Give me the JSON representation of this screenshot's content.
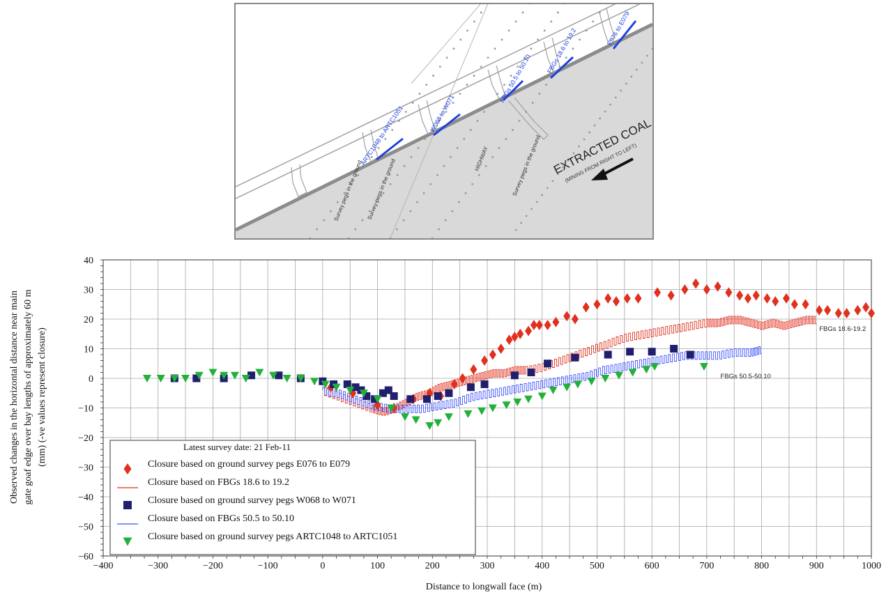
{
  "map_inset": {
    "main_label": "EXTRACTED COAL",
    "sub_label": "(MINING FROM RIGHT TO LEFT)",
    "highway_label": "HIGHWAY",
    "peg_label": "Survey pegs in the ground",
    "sections": [
      {
        "label": "ARTC1048 to ARTC1051"
      },
      {
        "label": "W068 to W071"
      },
      {
        "label": "FBGs 50.5 to 50.10"
      },
      {
        "label": "FBGs 18.6 to 19.2"
      },
      {
        "label": "E076 to E079"
      }
    ],
    "colors": {
      "fill": "#d9d9d9",
      "road": "#8c8c8c",
      "section": "#1f3fe0",
      "peg": "#999999"
    }
  },
  "chart_data": {
    "type": "scatter",
    "title": "",
    "xlabel": "Distance to longwall face (m)",
    "ylabel_lines": [
      "Observed changes in the horizontal distance near main",
      "gate goaf edge over bay lengths of approximately 60 m",
      "(mm) (-ve values represent closure)"
    ],
    "xlim": [
      -400,
      1000
    ],
    "ylim": [
      -60,
      40
    ],
    "x_ticks": [
      -400,
      -300,
      -200,
      -100,
      0,
      100,
      200,
      300,
      400,
      500,
      600,
      700,
      800,
      900,
      1000
    ],
    "x_tick_labels": [
      "−400",
      "−300",
      "−200",
      "−100",
      "0",
      "100",
      "200",
      "300",
      "400",
      "500",
      "600",
      "700",
      "800",
      "900",
      "1000"
    ],
    "y_ticks": [
      -60,
      -50,
      -40,
      -30,
      -20,
      -10,
      0,
      10,
      20,
      30,
      40
    ],
    "y_tick_labels": [
      "−60",
      "−50",
      "−40",
      "−30",
      "−20",
      "−10",
      "0",
      "10",
      "20",
      "30",
      "40"
    ],
    "grid": true,
    "legend": {
      "position": "bottom-left",
      "title": "Latest survey date: 21 Feb-11"
    },
    "series": [
      {
        "name": "Closure based on ground survey pegs E076 to E079",
        "kind": "marker",
        "marker": "diamond",
        "color": "#e0301e",
        "x": [
          15,
          55,
          100,
          130,
          165,
          195,
          215,
          240,
          255,
          275,
          295,
          310,
          325,
          340,
          350,
          360,
          375,
          385,
          395,
          410,
          425,
          445,
          460,
          480,
          500,
          520,
          535,
          555,
          575,
          610,
          635,
          660,
          680,
          700,
          720,
          740,
          760,
          775,
          790,
          810,
          825,
          845,
          860,
          880,
          905,
          920,
          940,
          955,
          975,
          990,
          1000
        ],
        "y": [
          -3,
          -5,
          -9,
          -10,
          -7,
          -5,
          -6,
          -2,
          0,
          3,
          6,
          8,
          10,
          13,
          14,
          15,
          16,
          18,
          18,
          18,
          19,
          21,
          20,
          24,
          25,
          27,
          26,
          27,
          27,
          29,
          28,
          30,
          32,
          30,
          31,
          29,
          28,
          27,
          28,
          27,
          26,
          27,
          25,
          25,
          23,
          23,
          22,
          22,
          23,
          24,
          22
        ]
      },
      {
        "name": "Closure based on FBGs 18.6 to 19.2",
        "kind": "line",
        "color": "#e0301e",
        "x": [
          0,
          30,
          60,
          90,
          110,
          130,
          150,
          170,
          190,
          210,
          230,
          250,
          270,
          290,
          310,
          330,
          350,
          370,
          400,
          430,
          460,
          490,
          520,
          550,
          580,
          610,
          640,
          670,
          700,
          720,
          740,
          760,
          780,
          800,
          820,
          840,
          860,
          880,
          900
        ],
        "y": [
          -4,
          -6,
          -8,
          -10,
          -11,
          -10,
          -8,
          -6,
          -5,
          -3,
          -2,
          -1,
          0,
          1,
          2,
          2,
          3,
          3,
          4,
          6,
          8,
          10,
          12,
          14,
          15,
          16,
          17,
          18,
          19,
          19,
          20,
          20,
          19,
          18,
          19,
          18,
          19,
          20,
          20
        ]
      },
      {
        "name": "Closure based on ground survey pegs W068 to W071",
        "kind": "marker",
        "marker": "square",
        "color": "#1f1f6e",
        "x": [
          -270,
          -230,
          -180,
          -130,
          -80,
          -40,
          0,
          20,
          45,
          60,
          70,
          80,
          95,
          110,
          120,
          130,
          160,
          190,
          210,
          230,
          270,
          295,
          350,
          380,
          410,
          460,
          520,
          560,
          600,
          640,
          670
        ],
        "y": [
          0,
          0,
          0,
          1,
          1,
          0,
          -1,
          -2,
          -2,
          -3,
          -4,
          -6,
          -7,
          -5,
          -4,
          -6,
          -7,
          -7,
          -6,
          -5,
          -3,
          -2,
          1,
          2,
          5,
          7,
          8,
          9,
          9,
          10,
          8
        ]
      },
      {
        "name": "Closure based on FBGs 50.5 to 50.10",
        "kind": "line",
        "color": "#3a4fff",
        "x": [
          0,
          30,
          60,
          90,
          120,
          150,
          180,
          210,
          240,
          270,
          300,
          330,
          360,
          390,
          420,
          450,
          480,
          510,
          540,
          570,
          600,
          630,
          660,
          690,
          720,
          750,
          780,
          800
        ],
        "y": [
          -4,
          -5,
          -7,
          -9,
          -10,
          -10,
          -10,
          -9,
          -8,
          -6,
          -5,
          -4,
          -3,
          -2,
          -1,
          0,
          1,
          3,
          4,
          5,
          6,
          7,
          8,
          8,
          8,
          9,
          9,
          10
        ]
      },
      {
        "name": "Closure based on ground survey pegs ARTC1048 to ARTC1051",
        "kind": "marker",
        "marker": "triangle-down",
        "color": "#22b03a",
        "x": [
          -320,
          -295,
          -270,
          -250,
          -225,
          -200,
          -180,
          -160,
          -140,
          -115,
          -90,
          -65,
          -40,
          -15,
          5,
          25,
          50,
          75,
          100,
          125,
          150,
          170,
          195,
          210,
          230,
          265,
          290,
          310,
          335,
          355,
          375,
          400,
          420,
          445,
          465,
          490,
          515,
          540,
          565,
          590,
          605,
          695
        ],
        "y": [
          0,
          0,
          0,
          0,
          1,
          2,
          1,
          1,
          0,
          2,
          1,
          0,
          0,
          -1,
          -2,
          -3,
          -4,
          -5,
          -7,
          -10,
          -13,
          -14,
          -16,
          -15,
          -13,
          -12,
          -11,
          -10,
          -9,
          -8,
          -7,
          -6,
          -4,
          -3,
          -2,
          -1,
          0,
          1,
          2,
          3,
          4,
          4
        ]
      }
    ],
    "annotations": [
      {
        "text": "FBGs 18.6-19.2",
        "x": 905,
        "y": 16
      },
      {
        "text": "FBGs 50.5-50.10",
        "x": 725,
        "y": 0
      }
    ]
  }
}
